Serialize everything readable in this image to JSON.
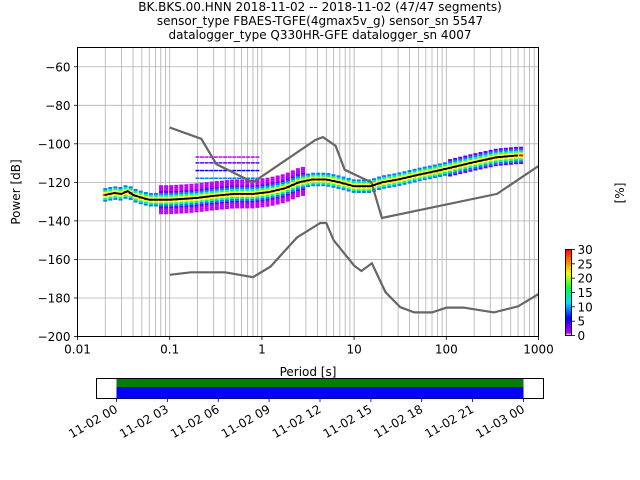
{
  "title": {
    "line1": "BK.BKS.00.HNN   2018-11-02 -- 2018-11-02  (47/47 segments)",
    "line2": "sensor_type FBAES-TGFE(4gmax5v_g) sensor_sn 5547",
    "line3": "datalogger_type Q330HR-GFE datalogger_sn 4007"
  },
  "colors": {
    "noise_model": "#666666",
    "mode_line": "#000000",
    "coverage_green": "#008000",
    "coverage_blue": "#0000ff"
  },
  "chart_data": [
    {
      "type": "heatmap",
      "chart_kind": "probabilistic power spectral density",
      "xlabel": "Period [s]",
      "ylabel": "Power [dB]",
      "xscale": "log",
      "xlim": [
        0.01,
        1000
      ],
      "ylim": [
        -200,
        -50
      ],
      "xticks": [
        0.01,
        0.1,
        1,
        10,
        100,
        1000
      ],
      "xtick_labels": [
        "0.01",
        "0.1",
        "1",
        "10",
        "100",
        "1000"
      ],
      "yticks": [
        -60,
        -80,
        -100,
        -120,
        -140,
        -160,
        -180,
        -200
      ],
      "ytick_labels": [
        "−60",
        "−80",
        "−100",
        "−120",
        "−140",
        "−160",
        "−180",
        "−200"
      ],
      "grid": true,
      "colorbar": {
        "label": "[%]",
        "range": [
          0,
          30
        ],
        "ticks": [
          0,
          5,
          10,
          15,
          20,
          25,
          30
        ],
        "tick_labels": [
          "0",
          "5",
          "10",
          "15",
          "20",
          "25",
          "30"
        ]
      },
      "series": [
        {
          "role": "upper noise model",
          "x": [
            0.1,
            0.22,
            0.32,
            0.8,
            3.8,
            4.6,
            6.3,
            7.9,
            15.4,
            20,
            354.8,
            1000
          ],
          "y": [
            -91.5,
            -97.4,
            -110.5,
            -120,
            -98,
            -96.5,
            -101,
            -113.5,
            -120,
            -138.5,
            -126,
            -111.5
          ]
        },
        {
          "role": "lower noise model",
          "x": [
            0.1,
            0.17,
            0.4,
            0.8,
            1.24,
            2.4,
            4.3,
            5,
            6,
            10,
            12,
            15.6,
            21.9,
            31.6,
            45,
            70,
            101,
            154,
            328,
            600,
            1000
          ],
          "y": [
            -168,
            -166.7,
            -166.7,
            -169.2,
            -163.7,
            -148.6,
            -141.1,
            -141.1,
            -150,
            -163.2,
            -166,
            -162,
            -177,
            -184.8,
            -187.5,
            -187.5,
            -185,
            -185,
            -187.5,
            -184.4,
            -178
          ]
        },
        {
          "role": "mode",
          "x": [
            0.02,
            0.025,
            0.03,
            0.035,
            0.04,
            0.05,
            0.06,
            0.08,
            0.1,
            0.15,
            0.2,
            0.3,
            0.5,
            0.8,
            1.2,
            1.8,
            2.5,
            3.5,
            5,
            7,
            10,
            15,
            20,
            30,
            50,
            80,
            120,
            200,
            350,
            600
          ],
          "y": [
            -126.5,
            -125.5,
            -126,
            -124.5,
            -126.5,
            -128,
            -129,
            -129,
            -129,
            -128.5,
            -128,
            -127,
            -126,
            -126,
            -125,
            -123,
            -120,
            -118.5,
            -118.5,
            -120,
            -122,
            -122,
            -120,
            -118.5,
            -116,
            -114,
            -112,
            -109.5,
            -107,
            -106
          ]
        }
      ]
    },
    {
      "type": "timeline",
      "chart_kind": "data coverage",
      "xtick_labels": [
        "11-02 00",
        "11-02 03",
        "11-02 06",
        "11-02 09",
        "11-02 12",
        "11-02 15",
        "11-02 18",
        "11-02 21",
        "11-03 00"
      ]
    }
  ]
}
